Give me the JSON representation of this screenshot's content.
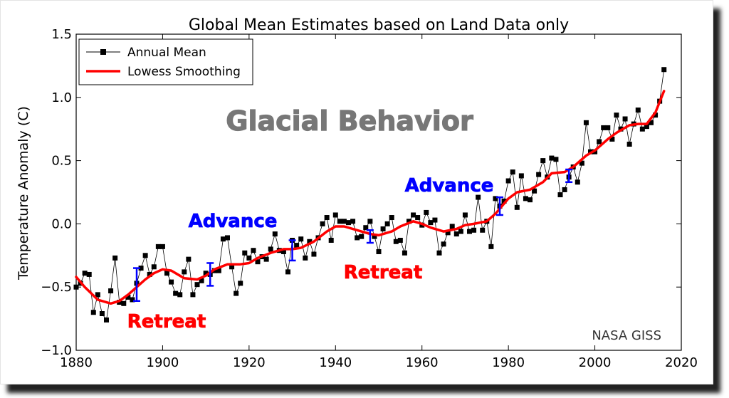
{
  "chart_data": {
    "type": "line",
    "title": "Global Mean Estimates based on Land Data only",
    "xlabel": "",
    "ylabel": "Temperature Anomaly (C)",
    "xlim": [
      1880,
      2020
    ],
    "ylim": [
      -1.0,
      1.5
    ],
    "xticks": [
      "1880",
      "1900",
      "1920",
      "1940",
      "1960",
      "1980",
      "2000",
      "2020"
    ],
    "yticks": [
      "1.5",
      "1.0",
      "0.5",
      "0.0",
      "−0.5",
      "−1.0"
    ],
    "grid": false,
    "legend_position": "top-left",
    "series": [
      {
        "name": "Annual Mean",
        "color": "#000000",
        "marker": "square",
        "x": [
          1880,
          1881,
          1882,
          1883,
          1884,
          1885,
          1886,
          1887,
          1888,
          1889,
          1890,
          1891,
          1892,
          1893,
          1894,
          1895,
          1896,
          1897,
          1898,
          1899,
          1900,
          1901,
          1902,
          1903,
          1904,
          1905,
          1906,
          1907,
          1908,
          1909,
          1910,
          1911,
          1912,
          1913,
          1914,
          1915,
          1916,
          1917,
          1918,
          1919,
          1920,
          1921,
          1922,
          1923,
          1924,
          1925,
          1926,
          1927,
          1928,
          1929,
          1930,
          1931,
          1932,
          1933,
          1934,
          1935,
          1936,
          1937,
          1938,
          1939,
          1940,
          1941,
          1942,
          1943,
          1944,
          1945,
          1946,
          1947,
          1948,
          1949,
          1950,
          1951,
          1952,
          1953,
          1954,
          1955,
          1956,
          1957,
          1958,
          1959,
          1960,
          1961,
          1962,
          1963,
          1964,
          1965,
          1966,
          1967,
          1968,
          1969,
          1970,
          1971,
          1972,
          1973,
          1974,
          1975,
          1976,
          1977,
          1978,
          1979,
          1980,
          1981,
          1982,
          1983,
          1984,
          1985,
          1986,
          1987,
          1988,
          1989,
          1990,
          1991,
          1992,
          1993,
          1994,
          1995,
          1996,
          1997,
          1998,
          1999,
          2000,
          2001,
          2002,
          2003,
          2004,
          2005,
          2006,
          2007,
          2008,
          2009,
          2010,
          2011,
          2012,
          2013,
          2014,
          2015,
          2016
        ],
        "values": [
          -0.5,
          -0.47,
          -0.39,
          -0.4,
          -0.7,
          -0.56,
          -0.71,
          -0.76,
          -0.53,
          -0.27,
          -0.62,
          -0.63,
          -0.58,
          -0.6,
          -0.47,
          -0.35,
          -0.25,
          -0.4,
          -0.34,
          -0.18,
          -0.18,
          -0.39,
          -0.46,
          -0.55,
          -0.56,
          -0.38,
          -0.28,
          -0.56,
          -0.48,
          -0.45,
          -0.39,
          -0.4,
          -0.37,
          -0.37,
          -0.12,
          -0.11,
          -0.34,
          -0.55,
          -0.47,
          -0.23,
          -0.27,
          -0.21,
          -0.3,
          -0.26,
          -0.28,
          -0.2,
          -0.08,
          -0.21,
          -0.22,
          -0.38,
          -0.13,
          -0.17,
          -0.12,
          -0.27,
          -0.14,
          -0.24,
          -0.11,
          0.0,
          0.05,
          -0.13,
          0.07,
          0.02,
          0.02,
          0.01,
          0.02,
          -0.11,
          -0.1,
          -0.03,
          0.02,
          -0.1,
          -0.22,
          -0.04,
          0.0,
          0.05,
          -0.14,
          -0.13,
          -0.23,
          0.02,
          0.07,
          0.05,
          -0.01,
          0.09,
          0.01,
          0.03,
          -0.23,
          -0.16,
          -0.07,
          -0.02,
          -0.08,
          -0.06,
          0.07,
          -0.06,
          -0.05,
          0.21,
          -0.05,
          0.02,
          -0.18,
          0.2,
          0.14,
          0.18,
          0.34,
          0.41,
          0.13,
          0.38,
          0.2,
          0.19,
          0.26,
          0.39,
          0.5,
          0.37,
          0.52,
          0.51,
          0.23,
          0.27,
          0.37,
          0.45,
          0.33,
          0.48,
          0.8,
          0.57,
          0.57,
          0.65,
          0.76,
          0.76,
          0.67,
          0.86,
          0.75,
          0.83,
          0.63,
          0.79,
          0.9,
          0.75,
          0.77,
          0.8,
          0.86,
          0.97,
          1.22
        ]
      },
      {
        "name": "Lowess Smoothing",
        "color": "#ff0000",
        "x": [
          1880,
          1882,
          1885,
          1888,
          1890,
          1892,
          1894,
          1896,
          1898,
          1900,
          1902,
          1905,
          1908,
          1910,
          1912,
          1915,
          1918,
          1920,
          1922,
          1925,
          1928,
          1930,
          1932,
          1935,
          1938,
          1940,
          1942,
          1945,
          1948,
          1950,
          1953,
          1955,
          1958,
          1960,
          1962,
          1965,
          1968,
          1970,
          1972,
          1975,
          1977,
          1980,
          1982,
          1985,
          1988,
          1990,
          1993,
          1995,
          1998,
          2000,
          2003,
          2005,
          2008,
          2010,
          2012,
          2014,
          2016
        ],
        "values": [
          -0.42,
          -0.5,
          -0.6,
          -0.63,
          -0.61,
          -0.56,
          -0.5,
          -0.44,
          -0.39,
          -0.36,
          -0.37,
          -0.43,
          -0.44,
          -0.41,
          -0.36,
          -0.32,
          -0.32,
          -0.31,
          -0.27,
          -0.23,
          -0.2,
          -0.2,
          -0.19,
          -0.14,
          -0.06,
          -0.02,
          -0.02,
          -0.05,
          -0.08,
          -0.09,
          -0.06,
          -0.02,
          0.02,
          0.0,
          -0.03,
          -0.06,
          -0.04,
          -0.01,
          0.0,
          0.02,
          0.08,
          0.2,
          0.25,
          0.27,
          0.33,
          0.4,
          0.41,
          0.45,
          0.54,
          0.58,
          0.67,
          0.72,
          0.78,
          0.79,
          0.79,
          0.88,
          1.05
        ]
      }
    ],
    "error_bars": {
      "color": "#0000ff",
      "x": [
        1894,
        1911,
        1930,
        1948,
        1978,
        1994
      ],
      "center": [
        -0.48,
        -0.4,
        -0.21,
        -0.1,
        0.14,
        0.38
      ],
      "halfwidth": [
        0.13,
        0.09,
        0.08,
        0.05,
        0.07,
        0.05
      ]
    },
    "annotations": {
      "watermark": "Glacial Behavior",
      "source": "NASA GISS",
      "labels": [
        {
          "text": "Advance",
          "color": "#0000ff"
        },
        {
          "text": "Advance",
          "color": "#0000ff"
        },
        {
          "text": "Retreat",
          "color": "#ff0000"
        },
        {
          "text": "Retreat",
          "color": "#ff0000"
        }
      ]
    }
  }
}
